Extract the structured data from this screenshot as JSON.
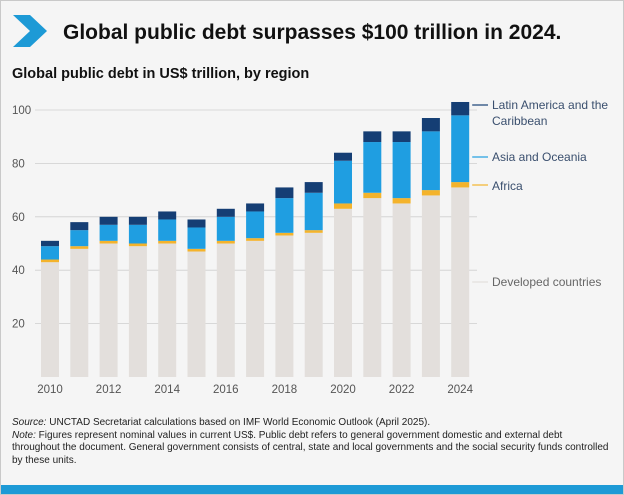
{
  "headline": "Global public debt surpasses $100 trillion in 2024.",
  "colors": {
    "accent": "#1d9ad6",
    "developed": "#e3dfdc",
    "africa": "#f4b32b",
    "asia": "#1f9ee1",
    "latam": "#153e74",
    "grid": "#cfcfcf",
    "tick_text": "#555555",
    "legend_text": "#3a4f6e"
  },
  "footnote": {
    "source_label": "Source:",
    "source_text": " UNCTAD Secretariat calculations based on IMF World Economic Outlook (April 2025).",
    "note_label": "Note:",
    "note_text": " Figures represent nominal values in current US$. Public debt refers to general government domestic and external debt throughout the document. General government consists of central, state and local governments and the social security funds controlled by these units."
  },
  "chart_data": {
    "type": "bar",
    "stacked": true,
    "title": "Global public debt in US$ trillion, by region",
    "xlabel": "",
    "ylabel": "",
    "ylim": [
      0,
      100
    ],
    "yticks": [
      20,
      40,
      60,
      80,
      100
    ],
    "categories": [
      "2010",
      "2011",
      "2012",
      "2013",
      "2014",
      "2015",
      "2016",
      "2017",
      "2018",
      "2019",
      "2020",
      "2021",
      "2022",
      "2023",
      "2024"
    ],
    "xtick_labels": [
      "2010",
      "2012",
      "2014",
      "2016",
      "2018",
      "2020",
      "2022",
      "2024"
    ],
    "grid": true,
    "legend_placement": "right, next to final bar",
    "series": [
      {
        "name": "Developed countries",
        "color_key": "developed",
        "values": [
          43,
          48,
          50,
          49,
          50,
          47,
          50,
          51,
          53,
          54,
          63,
          67,
          65,
          68,
          71
        ]
      },
      {
        "name": "Africa",
        "color_key": "africa",
        "values": [
          1,
          1,
          1,
          1,
          1,
          1,
          1,
          1,
          1,
          1,
          2,
          2,
          2,
          2,
          2
        ]
      },
      {
        "name": "Asia and Oceania",
        "color_key": "asia",
        "values": [
          5,
          6,
          6,
          7,
          8,
          8,
          9,
          10,
          13,
          14,
          16,
          19,
          21,
          22,
          25
        ]
      },
      {
        "name": "Latin America and the Caribbean",
        "color_key": "latam",
        "values": [
          2,
          3,
          3,
          3,
          3,
          3,
          3,
          3,
          4,
          4,
          3,
          4,
          4,
          5,
          5
        ]
      }
    ]
  }
}
